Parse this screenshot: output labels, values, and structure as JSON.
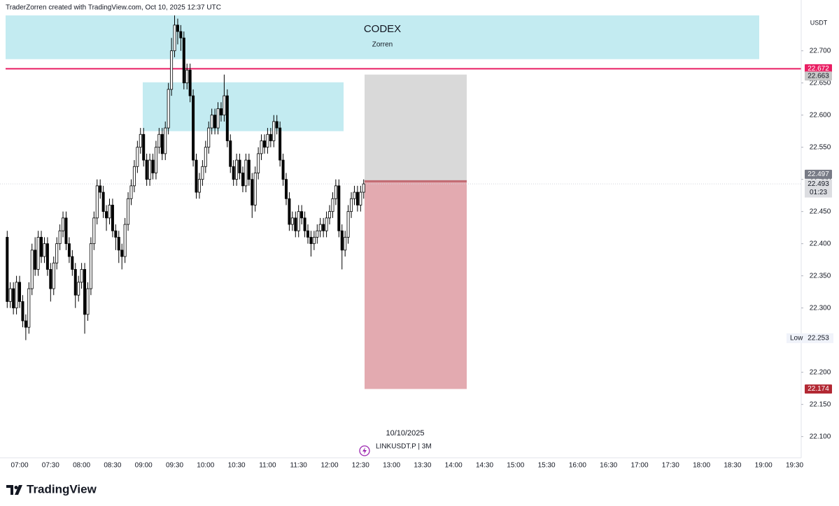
{
  "attribution": "TraderZorren created with TradingView.com, Oct 10, 2025 12:37 UTC",
  "brand": "TradingView",
  "chart_data": {
    "type": "candlestick",
    "currency": "USDT",
    "date_label": "10/10/2025",
    "symbol": "LINKUSDT.P | 3M",
    "ylim": [
      22.067,
      22.779
    ],
    "yticks": [
      {
        "value": 22.7,
        "label": "22.700"
      },
      {
        "value": 22.65,
        "label": "22.650"
      },
      {
        "value": 22.6,
        "label": "22.600"
      },
      {
        "value": 22.55,
        "label": "22.550"
      },
      {
        "value": 22.5,
        "label": "22.500"
      },
      {
        "value": 22.45,
        "label": "22.450"
      },
      {
        "value": 22.4,
        "label": "22.400"
      },
      {
        "value": 22.35,
        "label": "22.350"
      },
      {
        "value": 22.3,
        "label": "22.300"
      },
      {
        "value": 22.25,
        "label": "22.250"
      },
      {
        "value": 22.2,
        "label": "22.200"
      },
      {
        "value": 22.15,
        "label": "22.150"
      },
      {
        "value": 22.1,
        "label": "22.100"
      }
    ],
    "xticks": [
      "07:00",
      "07:30",
      "08:00",
      "08:30",
      "09:00",
      "09:30",
      "10:00",
      "10:30",
      "11:00",
      "11:30",
      "12:00",
      "12:30",
      "13:00",
      "13:30",
      "14:00",
      "14:30",
      "15:00",
      "15:30",
      "16:00",
      "16:30",
      "17:00",
      "17:30",
      "18:00",
      "18:30",
      "19:00",
      "19:30"
    ],
    "open": [
      22.41,
      22.31,
      22.33,
      22.3,
      22.34,
      22.31,
      22.28,
      22.27,
      22.33,
      22.39,
      22.36,
      22.41,
      22.38,
      22.4,
      22.36,
      22.33,
      22.37,
      22.4,
      22.42,
      22.44,
      22.4,
      22.38,
      22.36,
      22.32,
      22.34,
      22.36,
      22.29,
      22.33,
      22.4,
      22.44,
      22.49,
      22.48,
      22.45,
      22.44,
      22.46,
      22.42,
      22.41,
      22.39,
      22.38,
      22.43,
      22.47,
      22.49,
      22.52,
      22.55,
      22.57,
      22.53,
      22.5,
      22.53,
      22.51,
      22.55,
      22.57,
      22.54,
      22.58,
      22.64,
      22.7,
      22.74,
      22.73,
      22.72,
      22.65,
      22.67,
      22.63,
      22.53,
      22.48,
      22.5,
      22.52,
      22.55,
      22.58,
      22.6,
      22.58,
      22.61,
      22.6,
      22.63,
      22.56,
      22.52,
      22.5,
      22.53,
      22.51,
      22.49,
      22.53,
      22.5,
      22.46,
      22.51,
      22.54,
      22.56,
      22.55,
      22.57,
      22.56,
      22.59,
      22.58,
      22.53,
      22.5,
      22.47,
      22.43,
      22.44,
      22.42,
      22.45,
      22.44,
      22.42,
      22.41,
      22.4,
      22.41,
      22.42,
      22.43,
      22.42,
      22.44,
      22.45,
      22.47,
      22.49,
      22.42,
      22.39,
      22.41,
      22.45,
      22.47,
      22.48,
      22.46,
      22.48
    ],
    "high": [
      22.42,
      22.34,
      22.34,
      22.35,
      22.35,
      22.32,
      22.29,
      22.34,
      22.4,
      22.41,
      22.42,
      22.42,
      22.41,
      22.41,
      22.37,
      22.38,
      22.41,
      22.43,
      22.45,
      22.45,
      22.41,
      22.39,
      22.37,
      22.35,
      22.37,
      22.37,
      22.34,
      22.41,
      22.45,
      22.5,
      22.5,
      22.49,
      22.46,
      22.47,
      22.47,
      22.43,
      22.42,
      22.4,
      22.44,
      22.48,
      22.5,
      22.53,
      22.56,
      22.58,
      22.58,
      22.54,
      22.54,
      22.54,
      22.56,
      22.58,
      22.58,
      22.59,
      22.65,
      22.72,
      22.755,
      22.75,
      22.74,
      22.73,
      22.68,
      22.68,
      22.64,
      22.54,
      22.51,
      22.53,
      22.56,
      22.59,
      22.61,
      22.61,
      22.62,
      22.62,
      22.663,
      22.64,
      22.57,
      22.53,
      22.54,
      22.54,
      22.52,
      22.54,
      22.54,
      22.51,
      22.52,
      22.55,
      22.57,
      22.57,
      22.58,
      22.58,
      22.6,
      22.6,
      22.59,
      22.54,
      22.51,
      22.48,
      22.45,
      22.45,
      22.46,
      22.46,
      22.45,
      22.43,
      22.42,
      22.42,
      22.43,
      22.44,
      22.44,
      22.45,
      22.46,
      22.48,
      22.5,
      22.5,
      22.43,
      22.42,
      22.46,
      22.48,
      22.49,
      22.49,
      22.49,
      22.5
    ],
    "low": [
      22.3,
      22.3,
      22.29,
      22.29,
      22.3,
      22.27,
      22.25,
      22.26,
      22.32,
      22.35,
      22.35,
      22.37,
      22.37,
      22.35,
      22.31,
      22.32,
      22.36,
      22.39,
      22.41,
      22.39,
      22.37,
      22.35,
      22.3,
      22.31,
      22.33,
      22.26,
      22.28,
      22.32,
      22.39,
      22.43,
      22.47,
      22.44,
      22.42,
      22.43,
      22.41,
      22.39,
      22.37,
      22.36,
      22.37,
      22.42,
      22.46,
      22.48,
      22.51,
      22.54,
      22.52,
      22.49,
      22.49,
      22.5,
      22.5,
      22.54,
      22.53,
      22.53,
      22.57,
      22.63,
      22.69,
      22.71,
      22.7,
      22.64,
      22.64,
      22.62,
      22.52,
      22.47,
      22.47,
      22.49,
      22.51,
      22.54,
      22.57,
      22.57,
      22.57,
      22.59,
      22.59,
      22.55,
      22.51,
      22.49,
      22.49,
      22.5,
      22.48,
      22.48,
      22.49,
      22.44,
      22.45,
      22.5,
      22.53,
      22.54,
      22.54,
      22.55,
      22.55,
      22.57,
      22.52,
      22.49,
      22.46,
      22.42,
      22.42,
      22.41,
      22.41,
      22.43,
      22.41,
      22.4,
      22.38,
      22.39,
      22.4,
      22.41,
      22.41,
      22.41,
      22.43,
      22.44,
      22.46,
      22.41,
      22.36,
      22.38,
      22.4,
      22.44,
      22.46,
      22.45,
      22.45,
      22.47
    ],
    "close": [
      22.31,
      22.33,
      22.3,
      22.34,
      22.31,
      22.28,
      22.27,
      22.33,
      22.39,
      22.36,
      22.41,
      22.38,
      22.4,
      22.36,
      22.33,
      22.37,
      22.4,
      22.42,
      22.44,
      22.4,
      22.38,
      22.36,
      22.32,
      22.34,
      22.36,
      22.29,
      22.33,
      22.4,
      22.44,
      22.49,
      22.48,
      22.45,
      22.44,
      22.46,
      22.42,
      22.41,
      22.39,
      22.38,
      22.43,
      22.47,
      22.49,
      22.52,
      22.55,
      22.57,
      22.53,
      22.5,
      22.53,
      22.51,
      22.55,
      22.57,
      22.54,
      22.58,
      22.64,
      22.7,
      22.74,
      22.73,
      22.72,
      22.65,
      22.67,
      22.63,
      22.53,
      22.48,
      22.5,
      22.52,
      22.55,
      22.58,
      22.6,
      22.58,
      22.61,
      22.6,
      22.63,
      22.56,
      22.52,
      22.5,
      22.53,
      22.51,
      22.49,
      22.53,
      22.5,
      22.46,
      22.51,
      22.54,
      22.56,
      22.55,
      22.57,
      22.56,
      22.59,
      22.58,
      22.53,
      22.5,
      22.47,
      22.43,
      22.44,
      22.42,
      22.45,
      22.44,
      22.42,
      22.41,
      22.4,
      22.41,
      22.42,
      22.43,
      22.42,
      22.44,
      22.45,
      22.47,
      22.49,
      22.42,
      22.39,
      22.41,
      22.45,
      22.47,
      22.48,
      22.46,
      22.48,
      22.493
    ],
    "up_color": "#ffffff",
    "down_color": "#000000",
    "wick_color": "#000000",
    "countdown": "01:23",
    "horizontal_line": {
      "value": 22.672,
      "color": "#e91e63"
    },
    "zones": [
      {
        "top": 22.755,
        "bottom": 22.687,
        "color": "#c3ebf1",
        "title": "CODEX",
        "subtitle": "Zorren"
      },
      {
        "top": 22.651,
        "bottom": 22.575,
        "color": "#c3ebf1"
      }
    ],
    "position": {
      "target": 22.663,
      "entry": 22.497,
      "stop": 22.174,
      "target_color": "#d9d9d9",
      "stop_color": "#e3aab0"
    },
    "session_low": {
      "label": "Low",
      "value": 22.253
    }
  }
}
